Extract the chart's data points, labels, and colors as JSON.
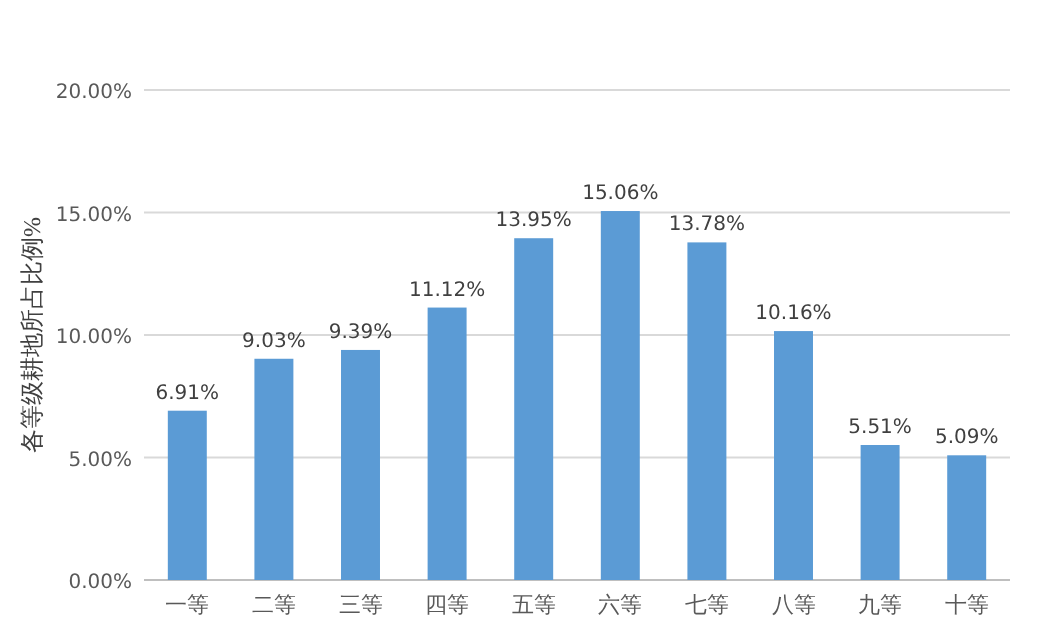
{
  "chart_data": {
    "type": "bar",
    "ylabel": "各等级耕地所占比例%",
    "categories": [
      "一等",
      "二等",
      "三等",
      "四等",
      "五等",
      "六等",
      "七等",
      "八等",
      "九等",
      "十等"
    ],
    "values": [
      6.91,
      9.03,
      9.39,
      11.12,
      13.95,
      15.06,
      13.78,
      10.16,
      5.51,
      5.09
    ],
    "value_labels": [
      "6.91%",
      "9.03%",
      "9.39%",
      "11.12%",
      "13.95%",
      "15.06%",
      "13.78%",
      "10.16%",
      "5.51%",
      "5.09%"
    ],
    "color": "#5b9bd5",
    "ylim": [
      0,
      20
    ],
    "yticks": [
      {
        "value": 0,
        "label": "0.00%"
      },
      {
        "value": 5,
        "label": "5.00%"
      },
      {
        "value": 10,
        "label": "10.00%"
      },
      {
        "value": 15,
        "label": "15.00%"
      },
      {
        "value": 20,
        "label": "20.00%"
      }
    ],
    "grid": "y"
  }
}
